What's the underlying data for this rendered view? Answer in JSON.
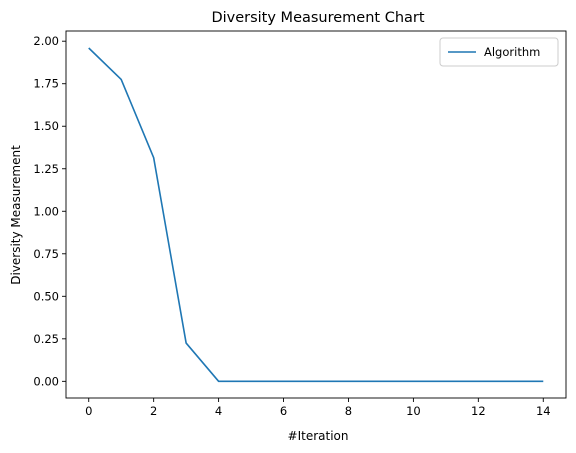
{
  "chart_data": {
    "type": "line",
    "title": "Diversity Measurement Chart",
    "xlabel": "#Iteration",
    "ylabel": "Diversity Measurement",
    "xlim": [
      -0.7,
      14.7
    ],
    "ylim": [
      -0.098,
      2.06
    ],
    "xticks": [
      0,
      2,
      4,
      6,
      8,
      10,
      12,
      14
    ],
    "xtick_labels": [
      "0",
      "2",
      "4",
      "6",
      "8",
      "10",
      "12",
      "14"
    ],
    "yticks": [
      0,
      0.25,
      0.5,
      0.75,
      1.0,
      1.25,
      1.5,
      1.75,
      2.0
    ],
    "ytick_labels": [
      "0.00",
      "0.25",
      "0.50",
      "0.75",
      "1.00",
      "1.25",
      "1.50",
      "1.75",
      "2.00"
    ],
    "grid": false,
    "legend_position": "top-right",
    "series": [
      {
        "name": "Algorithm",
        "color": "#1f77b4",
        "x": [
          0,
          1,
          2,
          3,
          4,
          5,
          6,
          7,
          8,
          9,
          10,
          11,
          12,
          13,
          14
        ],
        "y": [
          1.96,
          1.775,
          1.315,
          0.225,
          0.0,
          0.0,
          0.0,
          0.0,
          0.0,
          0.0,
          0.0,
          0.0,
          0.0,
          0.0,
          0.0
        ]
      }
    ]
  }
}
